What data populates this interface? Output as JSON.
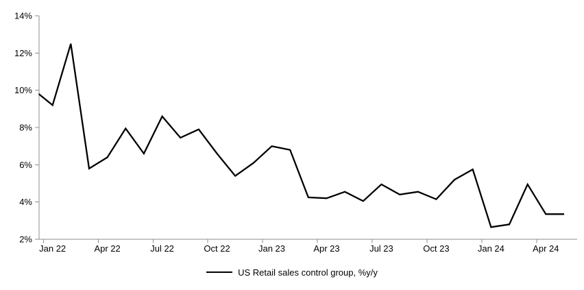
{
  "chart_data": {
    "type": "line",
    "title": "",
    "legend_position": "bottom",
    "grid": false,
    "line_color": "#000000",
    "axis_color": "#8C8C8C",
    "text_color": "#000000",
    "ylim": [
      2,
      14
    ],
    "ytick_step": 2,
    "ytick_labels": [
      "2%",
      "4%",
      "6%",
      "8%",
      "10%",
      "12%",
      "14%"
    ],
    "xtick_labels": [
      "Jan 22",
      "Apr 22",
      "Jul 22",
      "Oct 22",
      "Jan 23",
      "Apr 23",
      "Jul 23",
      "Oct 23",
      "Jan 24",
      "Apr 24"
    ],
    "x": [
      "Jan 22",
      "Feb 22",
      "Mar 22",
      "Apr 22",
      "May 22",
      "Jun 22",
      "Jul 22",
      "Aug 22",
      "Sep 22",
      "Oct 22",
      "Nov 22",
      "Dec 22",
      "Jan 23",
      "Feb 23",
      "Mar 23",
      "Apr 23",
      "May 23",
      "Jun 23",
      "Jul 23",
      "Aug 23",
      "Sep 23",
      "Oct 23",
      "Nov 23",
      "Dec 23",
      "Jan 24",
      "Feb 24",
      "Mar 24",
      "Apr 24",
      "May 24",
      "Jun 24"
    ],
    "series": [
      {
        "name": "US Retail sales control group, %y/y",
        "values": [
          10.0,
          9.2,
          12.5,
          5.8,
          6.4,
          7.95,
          6.6,
          8.6,
          7.45,
          7.9,
          6.6,
          5.4,
          6.1,
          7.0,
          6.8,
          4.25,
          4.2,
          4.55,
          4.05,
          4.95,
          4.4,
          4.55,
          4.15,
          5.2,
          5.75,
          2.65,
          2.8,
          4.95,
          3.35,
          3.35
        ]
      }
    ]
  }
}
